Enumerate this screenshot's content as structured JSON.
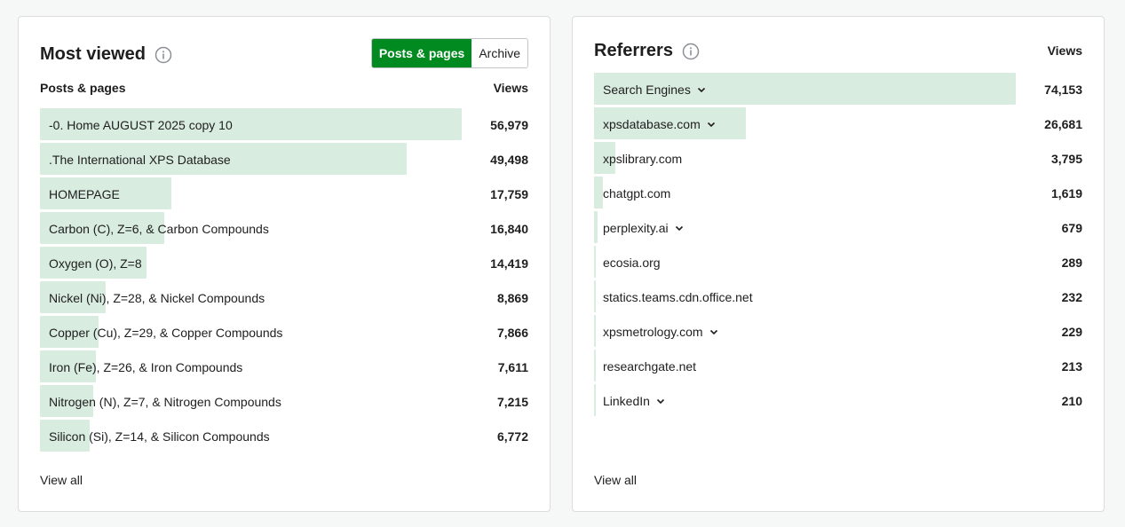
{
  "most_viewed": {
    "title": "Most viewed",
    "toggle": {
      "posts_label": "Posts & pages",
      "archive_label": "Archive",
      "active": "posts"
    },
    "column_label": "Posts & pages",
    "column_views": "Views",
    "rows": [
      {
        "label": "-0. Home AUGUST 2025 copy 10",
        "value": "56,979",
        "views": 56979
      },
      {
        "label": ".The International XPS Database",
        "value": "49,498",
        "views": 49498
      },
      {
        "label": "HOMEPAGE",
        "value": "17,759",
        "views": 17759
      },
      {
        "label": "Carbon (C), Z=6, & Carbon Compounds",
        "value": "16,840",
        "views": 16840
      },
      {
        "label": "Oxygen (O), Z=8",
        "value": "14,419",
        "views": 14419
      },
      {
        "label": "Nickel (Ni), Z=28, & Nickel Compounds",
        "value": "8,869",
        "views": 8869
      },
      {
        "label": "Copper (Cu), Z=29, & Copper Compounds",
        "value": "7,866",
        "views": 7866
      },
      {
        "label": "Iron (Fe), Z=26, & Iron Compounds",
        "value": "7,611",
        "views": 7611
      },
      {
        "label": "Nitrogen (N), Z=7, & Nitrogen Compounds",
        "value": "7,215",
        "views": 7215
      },
      {
        "label": "Silicon (Si), Z=14, & Silicon Compounds",
        "value": "6,772",
        "views": 6772
      }
    ],
    "view_all": "View all"
  },
  "referrers": {
    "title": "Referrers",
    "column_views": "Views",
    "rows": [
      {
        "label": "Search Engines",
        "value": "74,153",
        "views": 74153,
        "expandable": true
      },
      {
        "label": "xpsdatabase.com",
        "value": "26,681",
        "views": 26681,
        "expandable": true
      },
      {
        "label": "xpslibrary.com",
        "value": "3,795",
        "views": 3795,
        "expandable": false
      },
      {
        "label": "chatgpt.com",
        "value": "1,619",
        "views": 1619,
        "expandable": false
      },
      {
        "label": "perplexity.ai",
        "value": "679",
        "views": 679,
        "expandable": true
      },
      {
        "label": "ecosia.org",
        "value": "289",
        "views": 289,
        "expandable": false
      },
      {
        "label": "statics.teams.cdn.office.net",
        "value": "232",
        "views": 232,
        "expandable": false
      },
      {
        "label": "xpsmetrology.com",
        "value": "229",
        "views": 229,
        "expandable": true
      },
      {
        "label": "researchgate.net",
        "value": "213",
        "views": 213,
        "expandable": false
      },
      {
        "label": "LinkedIn",
        "value": "210",
        "views": 210,
        "expandable": true
      }
    ],
    "view_all": "View all"
  },
  "icons": {
    "info": "info-icon",
    "chevron": "chevron-down-icon"
  },
  "colors": {
    "accent": "#008a20",
    "bar": "#d9ece0"
  }
}
